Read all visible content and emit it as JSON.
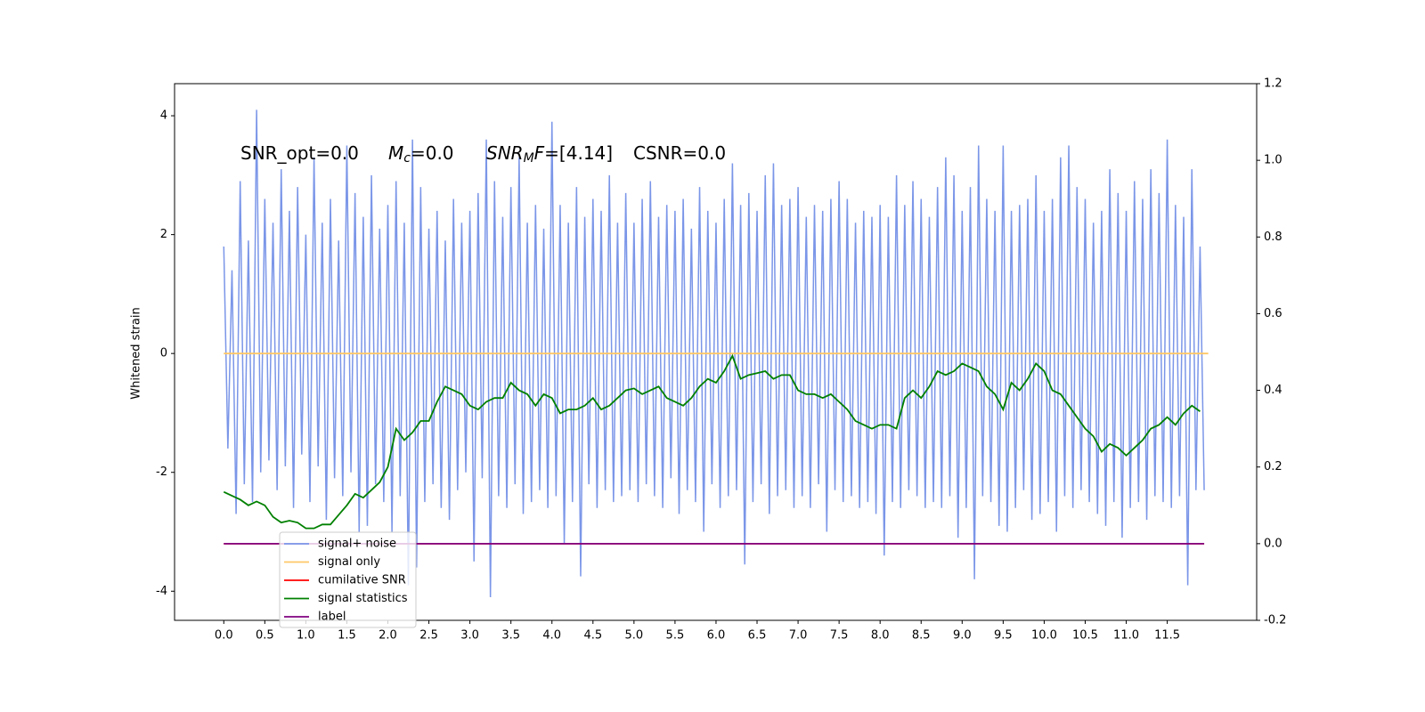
{
  "chart_data": {
    "type": "line",
    "ylabel": "Whitened strain",
    "annotations": [
      {
        "text": "SNR_opt=0.0"
      },
      {
        "main": "M",
        "sub": "c",
        "rest": "=0.0"
      },
      {
        "main": "SNR",
        "sub": "M",
        "tail": "F",
        "rest": "=[4.14]"
      },
      {
        "text": "CSNR=0.0"
      }
    ],
    "xlim": [
      -0.6,
      12.59
    ],
    "ylim": [
      -4.49,
      4.54
    ],
    "y2lim": [
      -0.2,
      1.2
    ],
    "xticks": [
      {
        "value": 0,
        "label": "0.0"
      },
      0.5,
      {
        "value": 1,
        "label": "1.0"
      },
      1.5,
      {
        "value": 2,
        "label": "2.0"
      },
      2.5,
      {
        "value": 3,
        "label": "3.0"
      },
      3.5,
      {
        "value": 4,
        "label": "4.0"
      },
      4.5,
      {
        "value": 5,
        "label": "5.0"
      },
      5.5,
      {
        "value": 6,
        "label": "6.0"
      },
      6.5,
      {
        "value": 7,
        "label": "7.0"
      },
      7.5,
      {
        "value": 8,
        "label": "8.0"
      },
      8.5,
      {
        "value": 9,
        "label": "9.0"
      },
      9.5,
      {
        "value": 10,
        "label": "10.0"
      },
      10.5,
      {
        "value": 11,
        "label": "11.0"
      },
      11.5
    ],
    "yticks": [
      -4,
      -2,
      0,
      2,
      4
    ],
    "y2ticks": [
      -0.2,
      {
        "value": 0,
        "label": "0.0"
      },
      0.2,
      0.4,
      0.6,
      0.8,
      {
        "value": 1,
        "label": "1.0"
      },
      1.2
    ],
    "legend": "lower left",
    "series": [
      {
        "name": "signal+ noise",
        "color": "#7b96e8",
        "axis": "y",
        "x": [
          0,
          0.05,
          0.1,
          0.15,
          0.2,
          0.25,
          0.3,
          0.35,
          0.4,
          0.45,
          0.5,
          0.55,
          0.6,
          0.65,
          0.7,
          0.75,
          0.8,
          0.85,
          0.9,
          0.95,
          1,
          1.05,
          1.1,
          1.15,
          1.2,
          1.25,
          1.3,
          1.35,
          1.4,
          1.45,
          1.5,
          1.55,
          1.6,
          1.65,
          1.7,
          1.75,
          1.8,
          1.85,
          1.9,
          1.95,
          2,
          2.05,
          2.1,
          2.15,
          2.2,
          2.25,
          2.3,
          2.35,
          2.4,
          2.45,
          2.5,
          2.55,
          2.6,
          2.65,
          2.7,
          2.75,
          2.8,
          2.85,
          2.9,
          2.95,
          3,
          3.05,
          3.1,
          3.15,
          3.2,
          3.25,
          3.3,
          3.35,
          3.4,
          3.45,
          3.5,
          3.55,
          3.6,
          3.65,
          3.7,
          3.75,
          3.8,
          3.85,
          3.9,
          3.95,
          4,
          4.05,
          4.1,
          4.15,
          4.2,
          4.25,
          4.3,
          4.35,
          4.4,
          4.45,
          4.5,
          4.55,
          4.6,
          4.65,
          4.7,
          4.75,
          4.8,
          4.85,
          4.9,
          4.95,
          5,
          5.05,
          5.1,
          5.15,
          5.2,
          5.25,
          5.3,
          5.35,
          5.4,
          5.45,
          5.5,
          5.55,
          5.6,
          5.65,
          5.7,
          5.75,
          5.8,
          5.85,
          5.9,
          5.95,
          6,
          6.05,
          6.1,
          6.15,
          6.2,
          6.25,
          6.3,
          6.35,
          6.4,
          6.45,
          6.5,
          6.55,
          6.6,
          6.65,
          6.7,
          6.75,
          6.8,
          6.85,
          6.9,
          6.95,
          7,
          7.05,
          7.1,
          7.15,
          7.2,
          7.25,
          7.3,
          7.35,
          7.4,
          7.45,
          7.5,
          7.55,
          7.6,
          7.65,
          7.7,
          7.75,
          7.8,
          7.85,
          7.9,
          7.95,
          8,
          8.05,
          8.1,
          8.15,
          8.2,
          8.25,
          8.3,
          8.35,
          8.4,
          8.45,
          8.5,
          8.55,
          8.6,
          8.65,
          8.7,
          8.75,
          8.8,
          8.85,
          8.9,
          8.95,
          9,
          9.05,
          9.1,
          9.15,
          9.2,
          9.25,
          9.3,
          9.35,
          9.4,
          9.45,
          9.5,
          9.55,
          9.6,
          9.65,
          9.7,
          9.75,
          9.8,
          9.85,
          9.9,
          9.95,
          10,
          10.05,
          10.1,
          10.15,
          10.2,
          10.25,
          10.3,
          10.35,
          10.4,
          10.45,
          10.5,
          10.55,
          10.6,
          10.65,
          10.7,
          10.75,
          10.8,
          10.85,
          10.9,
          10.95,
          11,
          11.05,
          11.1,
          11.15,
          11.2,
          11.25,
          11.3,
          11.35,
          11.4,
          11.45,
          11.5,
          11.55,
          11.6,
          11.65,
          11.7,
          11.75,
          11.8,
          11.85,
          11.9,
          11.95
        ],
        "values": [
          1.8,
          -1.6,
          1.4,
          -2.7,
          2.9,
          -2.2,
          1.9,
          -2.5,
          4.1,
          -2.0,
          2.6,
          -1.8,
          2.2,
          -2.3,
          3.1,
          -1.9,
          2.4,
          -2.6,
          2.8,
          -1.7,
          2.0,
          -2.5,
          3.3,
          -1.9,
          2.2,
          -2.8,
          2.6,
          -2.1,
          1.9,
          -2.4,
          3.5,
          -2.0,
          2.7,
          -3.0,
          2.3,
          -2.9,
          3.0,
          -2.2,
          2.1,
          -2.5,
          2.5,
          -3.0,
          2.9,
          -2.4,
          2.2,
          -3.9,
          3.6,
          -3.6,
          2.8,
          -2.5,
          2.1,
          -2.2,
          2.4,
          -2.6,
          1.9,
          -2.8,
          2.6,
          -2.3,
          2.2,
          -2.0,
          2.4,
          -3.5,
          2.7,
          -2.1,
          3.6,
          -4.1,
          2.9,
          -2.4,
          2.3,
          -2.6,
          2.8,
          -2.2,
          3.3,
          -2.7,
          2.2,
          -2.5,
          2.5,
          -2.3,
          2.1,
          -2.6,
          3.9,
          -2.4,
          2.5,
          -3.2,
          2.2,
          -2.5,
          2.8,
          -3.75,
          2.3,
          -2.2,
          2.6,
          -2.6,
          2.4,
          -2.3,
          3.0,
          -2.5,
          2.2,
          -2.4,
          2.7,
          -2.3,
          2.2,
          -2.5,
          2.6,
          -2.2,
          2.9,
          -2.4,
          2.3,
          -2.6,
          2.5,
          -2.1,
          2.4,
          -2.7,
          2.6,
          -2.3,
          2.1,
          -2.5,
          2.8,
          -3.0,
          2.4,
          -2.2,
          2.2,
          -2.6,
          2.6,
          -2.4,
          3.2,
          -2.3,
          2.5,
          -3.55,
          2.7,
          -2.5,
          2.4,
          -2.2,
          3.0,
          -2.7,
          3.2,
          -2.4,
          2.5,
          -2.3,
          2.6,
          -2.6,
          2.8,
          -2.4,
          2.3,
          -2.6,
          2.5,
          -2.2,
          2.4,
          -3.0,
          2.6,
          -2.3,
          2.9,
          -2.5,
          2.6,
          -2.4,
          2.2,
          -2.6,
          2.4,
          -2.5,
          2.3,
          -2.7,
          2.5,
          -3.4,
          2.3,
          -2.5,
          3.0,
          -2.6,
          2.5,
          -2.3,
          2.9,
          -2.4,
          2.6,
          -2.6,
          2.3,
          -2.5,
          2.8,
          -2.6,
          3.3,
          -2.4,
          3.0,
          -3.1,
          2.4,
          -2.6,
          2.8,
          -3.8,
          3.5,
          -2.4,
          2.6,
          -2.5,
          2.4,
          -2.9,
          3.5,
          -3.0,
          2.4,
          -2.6,
          2.5,
          -2.3,
          2.6,
          -2.8,
          3.0,
          -2.7,
          2.4,
          -2.5,
          2.6,
          -3.0,
          3.3,
          -2.4,
          3.5,
          -2.6,
          2.8,
          -2.3,
          2.6,
          -2.5,
          2.2,
          -2.7,
          2.4,
          -2.9,
          3.1,
          -2.5,
          2.7,
          -3.1,
          2.4,
          -2.6,
          2.9,
          -2.5,
          2.6,
          -2.8,
          3.1,
          -2.4,
          2.7,
          -2.5,
          3.6,
          -2.6,
          2.5,
          -2.4,
          2.3,
          -3.9,
          3.1,
          -2.3,
          1.8,
          -2.3
        ]
      },
      {
        "name": "signal only",
        "color": "#ffc766",
        "axis": "y",
        "x": [
          0,
          12
        ],
        "values": [
          0,
          0
        ]
      },
      {
        "name": "cumilative SNR",
        "color": "#ff0000",
        "axis": "y2",
        "x": [
          0,
          11.95
        ],
        "values": [
          0,
          0
        ]
      },
      {
        "name": "signal statistics",
        "color": "#008000",
        "axis": "y2",
        "x": [
          0,
          0.1,
          0.2,
          0.3,
          0.4,
          0.5,
          0.6,
          0.7,
          0.8,
          0.9,
          1,
          1.1,
          1.2,
          1.3,
          1.4,
          1.5,
          1.6,
          1.7,
          1.8,
          1.9,
          2,
          2.1,
          2.2,
          2.3,
          2.4,
          2.5,
          2.6,
          2.7,
          2.8,
          2.9,
          3,
          3.1,
          3.2,
          3.3,
          3.4,
          3.5,
          3.6,
          3.7,
          3.8,
          3.9,
          4,
          4.1,
          4.2,
          4.3,
          4.4,
          4.5,
          4.6,
          4.7,
          4.8,
          4.9,
          5,
          5.1,
          5.2,
          5.3,
          5.4,
          5.5,
          5.6,
          5.7,
          5.8,
          5.9,
          6,
          6.1,
          6.2,
          6.3,
          6.4,
          6.5,
          6.6,
          6.7,
          6.8,
          6.9,
          7,
          7.1,
          7.2,
          7.3,
          7.4,
          7.5,
          7.6,
          7.7,
          7.8,
          7.9,
          8,
          8.1,
          8.2,
          8.3,
          8.4,
          8.5,
          8.6,
          8.7,
          8.8,
          8.9,
          9,
          9.1,
          9.2,
          9.3,
          9.4,
          9.5,
          9.6,
          9.7,
          9.8,
          9.9,
          10,
          10.1,
          10.2,
          10.3,
          10.4,
          10.5,
          10.6,
          10.7,
          10.8,
          10.9,
          11,
          11.1,
          11.2,
          11.3,
          11.4,
          11.5,
          11.6,
          11.7,
          11.8,
          11.9
        ],
        "values": [
          0.135,
          0.125,
          0.115,
          0.1,
          0.11,
          0.1,
          0.07,
          0.055,
          0.06,
          0.055,
          0.04,
          0.04,
          0.05,
          0.05,
          0.075,
          0.1,
          0.13,
          0.12,
          0.14,
          0.16,
          0.2,
          0.3,
          0.27,
          0.29,
          0.32,
          0.32,
          0.37,
          0.41,
          0.4,
          0.39,
          0.36,
          0.35,
          0.37,
          0.38,
          0.38,
          0.42,
          0.4,
          0.39,
          0.36,
          0.39,
          0.38,
          0.34,
          0.35,
          0.35,
          0.36,
          0.38,
          0.35,
          0.36,
          0.38,
          0.4,
          0.405,
          0.39,
          0.4,
          0.41,
          0.38,
          0.37,
          0.36,
          0.38,
          0.41,
          0.43,
          0.42,
          0.45,
          0.49,
          0.43,
          0.44,
          0.445,
          0.45,
          0.43,
          0.44,
          0.44,
          0.4,
          0.39,
          0.39,
          0.38,
          0.39,
          0.37,
          0.35,
          0.32,
          0.31,
          0.3,
          0.31,
          0.31,
          0.3,
          0.38,
          0.4,
          0.38,
          0.41,
          0.45,
          0.44,
          0.45,
          0.47,
          0.46,
          0.45,
          0.41,
          0.39,
          0.35,
          0.42,
          0.4,
          0.43,
          0.47,
          0.45,
          0.4,
          0.39,
          0.36,
          0.33,
          0.3,
          0.28,
          0.24,
          0.26,
          0.25,
          0.23,
          0.25,
          0.27,
          0.3,
          0.31,
          0.33,
          0.31,
          0.34,
          0.36,
          0.345
        ]
      },
      {
        "name": "label",
        "color": "#800080",
        "axis": "y2",
        "x": [
          0,
          11.95
        ],
        "values": [
          0,
          0
        ]
      }
    ]
  }
}
